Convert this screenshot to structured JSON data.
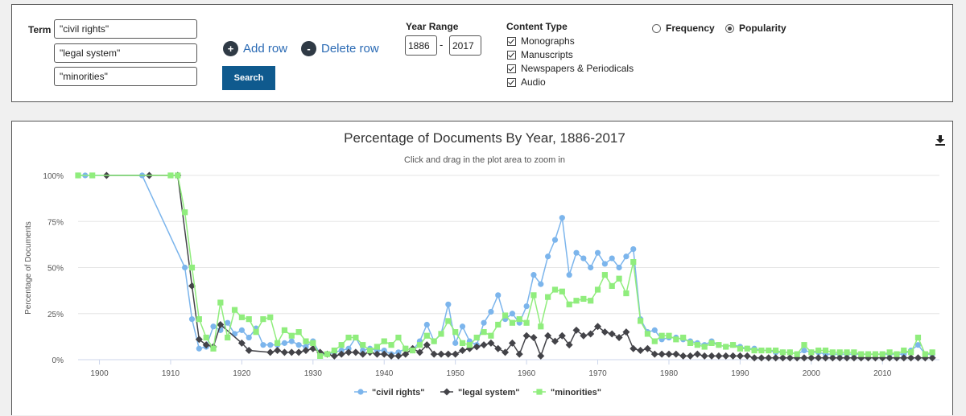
{
  "search": {
    "term_label": "Term",
    "terms": [
      "\"civil rights\"",
      "\"legal system\"",
      "\"minorities\""
    ],
    "add_row": "Add row",
    "delete_row": "Delete row",
    "search_label": "Search",
    "year_range_label": "Year Range",
    "year_from": "1886",
    "year_to": "2017",
    "year_sep": "-",
    "content_type_label": "Content Type",
    "content_types": [
      "Monographs",
      "Manuscripts",
      "Newspapers & Periodicals",
      "Audio"
    ],
    "frequency_label": "Frequency",
    "popularity_label": "Popularity",
    "selected_mode": "Popularity"
  },
  "chart_data": {
    "type": "line",
    "title": "Percentage of Documents By Year, 1886-2017",
    "subtitle": "Click and drag in the plot area to zoom in",
    "ylabel": "Percentage of Documents",
    "xlabel": "",
    "xlim": [
      1897,
      2018
    ],
    "ylim": [
      0,
      100
    ],
    "x_ticks": [
      1900,
      1910,
      1920,
      1930,
      1940,
      1950,
      1960,
      1970,
      1980,
      1990,
      2000,
      2010
    ],
    "y_ticks": [
      "0%",
      "25%",
      "50%",
      "75%",
      "100%"
    ],
    "y_tick_values": [
      0,
      25,
      50,
      75,
      100
    ],
    "grid": "horizontal",
    "legend_position": "bottom",
    "series": [
      {
        "name": "\"civil rights\"",
        "color": "#7cb5ec",
        "marker": "circle",
        "x": [
          1897,
          1898,
          1906,
          1912,
          1913,
          1914,
          1915,
          1916,
          1917,
          1918,
          1919,
          1920,
          1921,
          1922,
          1923,
          1924,
          1925,
          1926,
          1927,
          1928,
          1929,
          1930,
          1931,
          1932,
          1933,
          1934,
          1935,
          1936,
          1937,
          1938,
          1939,
          1940,
          1941,
          1942,
          1943,
          1944,
          1945,
          1946,
          1947,
          1948,
          1949,
          1950,
          1951,
          1952,
          1953,
          1954,
          1955,
          1956,
          1957,
          1958,
          1959,
          1960,
          1961,
          1962,
          1963,
          1964,
          1965,
          1966,
          1967,
          1968,
          1969,
          1970,
          1971,
          1972,
          1973,
          1974,
          1975,
          1976,
          1977,
          1978,
          1979,
          1980,
          1981,
          1982,
          1983,
          1984,
          1985,
          1986,
          1987,
          1988,
          1989,
          1990,
          1991,
          1992,
          1993,
          1994,
          1995,
          1996,
          1997,
          1998,
          1999,
          2000,
          2001,
          2002,
          2003,
          2004,
          2005,
          2006,
          2007,
          2008,
          2009,
          2010,
          2011,
          2012,
          2013,
          2014,
          2015,
          2016,
          2017
        ],
        "y": [
          100,
          100,
          100,
          50,
          22,
          6,
          7,
          18,
          16,
          20,
          14,
          16,
          12,
          17,
          8,
          8,
          8,
          9,
          10,
          8,
          7,
          10,
          3,
          3,
          4,
          5,
          6,
          12,
          5,
          6,
          5,
          5,
          3,
          4,
          6,
          5,
          10,
          19,
          10,
          14,
          30,
          9,
          18,
          10,
          8,
          20,
          26,
          35,
          22,
          25,
          20,
          29,
          46,
          41,
          56,
          65,
          77,
          46,
          58,
          55,
          50,
          58,
          52,
          55,
          50,
          56,
          60,
          22,
          15,
          16,
          11,
          12,
          12,
          11,
          10,
          9,
          8,
          10,
          8,
          7,
          8,
          7,
          6,
          6,
          5,
          5,
          4,
          4,
          4,
          3,
          5,
          4,
          4,
          3,
          3,
          3,
          3,
          3,
          3,
          3,
          3,
          3,
          3,
          3,
          3,
          5,
          8,
          3,
          3
        ]
      },
      {
        "name": "\"legal system\"",
        "color": "#434348",
        "marker": "diamond",
        "x": [
          1901,
          1907,
          1911,
          1913,
          1914,
          1915,
          1916,
          1917,
          1920,
          1921,
          1924,
          1925,
          1926,
          1927,
          1928,
          1929,
          1930,
          1931,
          1932,
          1933,
          1934,
          1935,
          1936,
          1937,
          1938,
          1939,
          1940,
          1941,
          1942,
          1943,
          1944,
          1945,
          1946,
          1947,
          1948,
          1949,
          1950,
          1951,
          1952,
          1953,
          1954,
          1955,
          1956,
          1957,
          1958,
          1959,
          1960,
          1961,
          1962,
          1963,
          1964,
          1965,
          1966,
          1967,
          1968,
          1969,
          1970,
          1971,
          1972,
          1973,
          1974,
          1975,
          1976,
          1977,
          1978,
          1979,
          1980,
          1981,
          1982,
          1983,
          1984,
          1985,
          1986,
          1987,
          1988,
          1989,
          1990,
          1991,
          1992,
          1993,
          1994,
          1995,
          1996,
          1997,
          1998,
          1999,
          2000,
          2001,
          2002,
          2003,
          2004,
          2005,
          2006,
          2007,
          2008,
          2009,
          2010,
          2011,
          2012,
          2013,
          2014,
          2015,
          2016,
          2017
        ],
        "y": [
          100,
          100,
          100,
          40,
          11,
          8,
          7,
          19,
          9,
          5,
          4,
          5,
          4,
          4,
          4,
          5,
          6,
          4,
          3,
          2,
          3,
          4,
          4,
          3,
          4,
          3,
          3,
          2,
          2,
          3,
          6,
          4,
          8,
          3,
          3,
          3,
          3,
          5,
          6,
          7,
          8,
          9,
          6,
          4,
          9,
          3,
          13,
          12,
          2,
          13,
          10,
          13,
          8,
          16,
          13,
          14,
          18,
          15,
          14,
          12,
          15,
          6,
          5,
          6,
          3,
          3,
          3,
          3,
          2,
          2,
          3,
          2,
          2,
          2,
          2,
          2,
          2,
          2,
          1,
          1,
          1,
          1,
          1,
          1,
          1,
          1,
          1,
          1,
          1,
          1,
          1,
          1,
          1,
          1,
          1,
          1,
          1,
          1,
          1,
          1,
          1,
          1,
          1,
          1
        ]
      },
      {
        "name": "\"minorities\"",
        "color": "#90ed7d",
        "marker": "square",
        "x": [
          1897,
          1899,
          1910,
          1911,
          1912,
          1913,
          1914,
          1915,
          1916,
          1917,
          1918,
          1919,
          1920,
          1921,
          1922,
          1923,
          1924,
          1925,
          1926,
          1927,
          1928,
          1929,
          1930,
          1931,
          1932,
          1933,
          1934,
          1935,
          1936,
          1937,
          1938,
          1939,
          1940,
          1941,
          1942,
          1943,
          1944,
          1945,
          1946,
          1947,
          1948,
          1949,
          1950,
          1951,
          1952,
          1953,
          1954,
          1955,
          1956,
          1957,
          1958,
          1959,
          1960,
          1961,
          1962,
          1963,
          1964,
          1965,
          1966,
          1967,
          1968,
          1969,
          1970,
          1971,
          1972,
          1973,
          1974,
          1975,
          1976,
          1977,
          1978,
          1979,
          1980,
          1981,
          1982,
          1983,
          1984,
          1985,
          1986,
          1987,
          1988,
          1989,
          1990,
          1991,
          1992,
          1993,
          1994,
          1995,
          1996,
          1997,
          1998,
          1999,
          2000,
          2001,
          2002,
          2003,
          2004,
          2005,
          2006,
          2007,
          2008,
          2009,
          2010,
          2011,
          2012,
          2013,
          2014,
          2015,
          2016,
          2017
        ],
        "y": [
          100,
          100,
          100,
          100,
          80,
          50,
          22,
          12,
          6,
          31,
          12,
          27,
          23,
          22,
          15,
          22,
          23,
          9,
          16,
          13,
          15,
          10,
          9,
          2,
          3,
          5,
          8,
          12,
          12,
          8,
          5,
          7,
          10,
          8,
          12,
          6,
          5,
          8,
          13,
          10,
          14,
          21,
          15,
          9,
          8,
          12,
          15,
          13,
          19,
          24,
          20,
          22,
          20,
          35,
          18,
          34,
          38,
          37,
          30,
          32,
          33,
          32,
          38,
          46,
          40,
          44,
          36,
          53,
          21,
          14,
          10,
          13,
          13,
          11,
          12,
          9,
          8,
          7,
          9,
          8,
          7,
          8,
          6,
          6,
          5,
          5,
          5,
          5,
          4,
          4,
          3,
          8,
          4,
          5,
          5,
          4,
          4,
          4,
          4,
          3,
          3,
          3,
          3,
          4,
          3,
          5,
          4,
          12,
          3,
          4
        ]
      }
    ]
  }
}
